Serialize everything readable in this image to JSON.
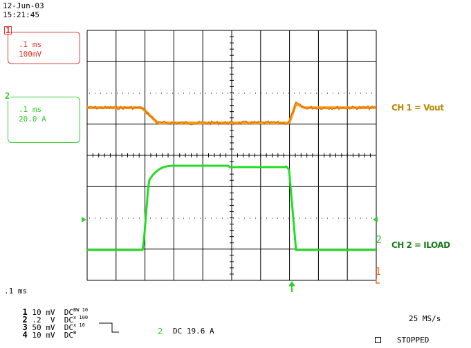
{
  "header": {
    "date": "12-Jun-03",
    "time": "15:21:45"
  },
  "channel_boxes": [
    {
      "tag": "1",
      "timebase": ".1 ms",
      "scale": "100mV",
      "color": "#e2382c"
    },
    {
      "tag": "2",
      "timebase": ".1 ms",
      "scale": "20.0 A",
      "color": "#2ecf2e"
    }
  ],
  "trace_labels": {
    "ch1": "CH 1 = Vout",
    "ch2": "CH 2 = ILOAD"
  },
  "colors": {
    "ch1_trace": "#ff9a1a",
    "ch1_label_text": "#b58a00",
    "ch2_trace": "#22dd22",
    "grid": "#000000"
  },
  "markers": {
    "right_ch1": "1",
    "right_ch2": "2"
  },
  "bottom": {
    "timebase": ".1 ms",
    "channels": [
      {
        "num": "1",
        "volts": "10 mV",
        "coupling": "DC",
        "mark": "BW 10"
      },
      {
        "num": "2",
        "volts": ".2  V",
        "coupling": "DC",
        "mark": "x 100"
      },
      {
        "num": "3",
        "volts": "50 mV",
        "coupling": "DC",
        "mark": "x 10"
      },
      {
        "num": "4",
        "volts": "10 mV",
        "coupling": "DC",
        "mark": "B"
      }
    ],
    "trigger": {
      "channel": "2",
      "text": "DC 19.6 A"
    },
    "sample_rate": "25 MS/s",
    "status": "STOPPED"
  }
}
